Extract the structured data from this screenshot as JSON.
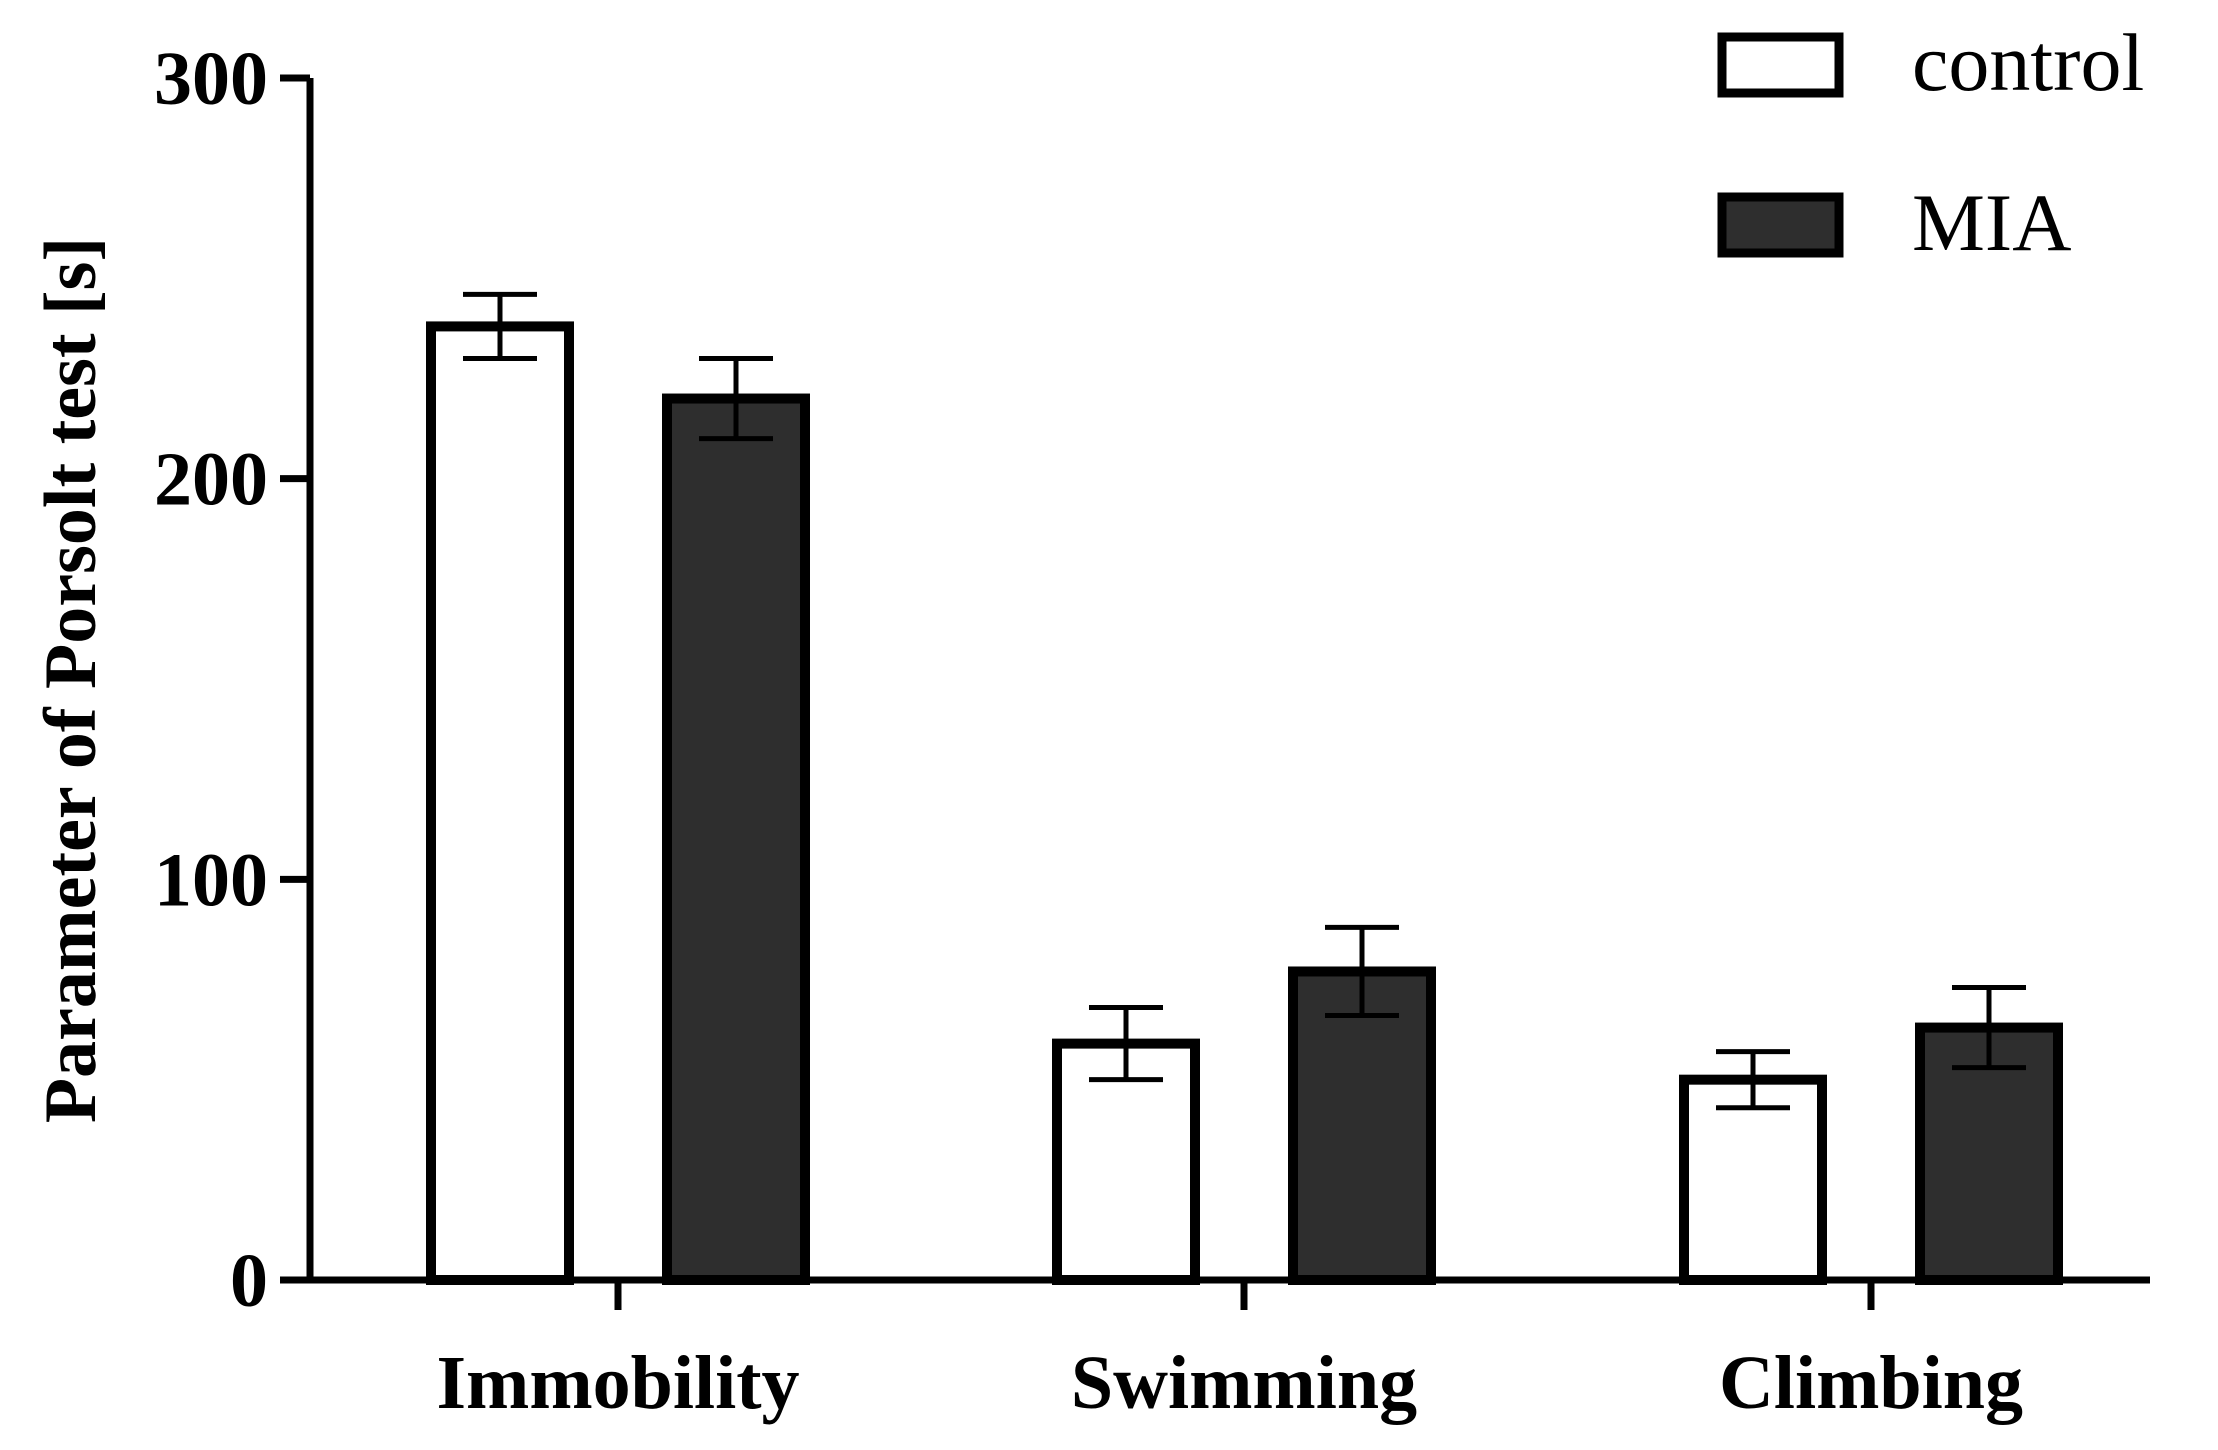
{
  "chart_data": {
    "type": "bar",
    "title": "",
    "xlabel": "",
    "ylabel": "Parameter of Porsolt test [s]",
    "ylim": [
      0,
      300
    ],
    "yticks": [
      0,
      100,
      200,
      300
    ],
    "ytick_labels": [
      "0",
      "100",
      "200",
      "300"
    ],
    "categories": [
      "Immobility",
      "Swimming",
      "Climbing"
    ],
    "series": [
      {
        "name": "control",
        "color": "#ffffff",
        "values": [
          238,
          59,
          50
        ],
        "errors": [
          8,
          9,
          7
        ]
      },
      {
        "name": "MIA",
        "color": "#2e2e2e",
        "values": [
          220,
          77,
          63
        ],
        "errors": [
          10,
          11,
          10
        ]
      }
    ],
    "legend_position": "top-right",
    "grid": false
  }
}
